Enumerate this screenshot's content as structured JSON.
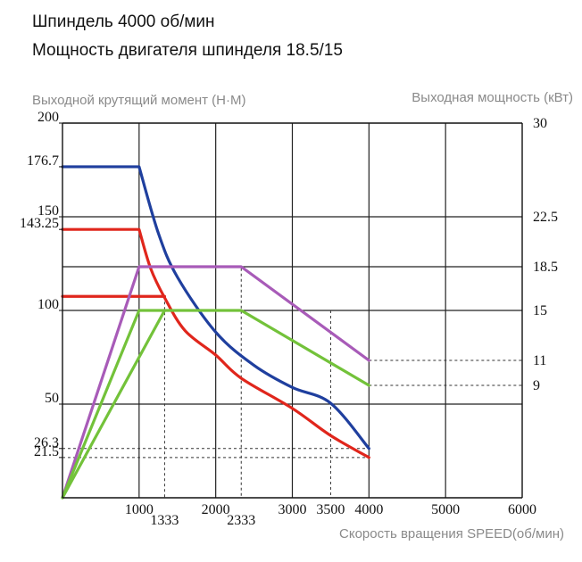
{
  "header": {
    "line1": "Шпиндель  4000  об/мин",
    "line2": "Мощность двигателя шпинделя  18.5/15"
  },
  "chart_data": {
    "type": "line",
    "ylabel_left": "Выходной крутящий момент  (Н·М)",
    "ylabel_right": "Выходная мощность (кВт)",
    "xlabel": "Скорость вращения  SPEED(об/мин)",
    "xlim": [
      0,
      6000
    ],
    "ylim_left": [
      0,
      200
    ],
    "ylim_right": [
      0,
      30
    ],
    "grid": true,
    "x_ticks": [
      {
        "value": 1000,
        "label": "1000",
        "row": 0
      },
      {
        "value": 1333,
        "label": "1333",
        "row": 1
      },
      {
        "value": 2000,
        "label": "2000",
        "row": 0
      },
      {
        "value": 2333,
        "label": "2333",
        "row": 1
      },
      {
        "value": 3000,
        "label": "3000",
        "row": 0
      },
      {
        "value": 3500,
        "label": "3500",
        "row": 0
      },
      {
        "value": 4000,
        "label": "4000",
        "row": 0
      },
      {
        "value": 5000,
        "label": "5000",
        "row": 0
      },
      {
        "value": 6000,
        "label": "6000",
        "row": 0
      }
    ],
    "y_left_ticks": [
      {
        "value": 200,
        "label": "200"
      },
      {
        "value": 176.7,
        "label": "176.7"
      },
      {
        "value": 150,
        "label": "150"
      },
      {
        "value": 143.25,
        "label": "143.25"
      },
      {
        "value": 100,
        "label": "100"
      },
      {
        "value": 50,
        "label": "50"
      },
      {
        "value": 26.3,
        "label": "26.3"
      },
      {
        "value": 21.5,
        "label": "21.5"
      }
    ],
    "y_right_ticks": [
      {
        "value": 30,
        "label": "30"
      },
      {
        "value": 22.5,
        "label": "22.5"
      },
      {
        "value": 18.5,
        "label": "18.5"
      },
      {
        "value": 15,
        "label": "15"
      },
      {
        "value": 11,
        "label": "11"
      },
      {
        "value": 9,
        "label": "9"
      }
    ],
    "series": [
      {
        "color": "#1f3f9e",
        "axis": "left",
        "x": [
          0,
          1000,
          1250,
          1500,
          2000,
          2500,
          3000,
          3500,
          4000
        ],
        "y": [
          176.7,
          176.7,
          141.4,
          117.8,
          88.4,
          70.7,
          58.9,
          50.5,
          26.3
        ]
      },
      {
        "color": "#e0261c",
        "axis": "left",
        "x": [
          0,
          1000,
          1150,
          1333,
          1600,
          2000,
          2333,
          3000,
          3500,
          4000
        ],
        "y": [
          143.25,
          143.25,
          122.5,
          106.8,
          89.2,
          76.2,
          63.8,
          47.7,
          33.2,
          21.5
        ]
      },
      {
        "color": "#e0261c",
        "axis": "left",
        "x": [
          0,
          1333
        ],
        "y": [
          107.5,
          107.5
        ]
      },
      {
        "color": "#a85bb8",
        "axis": "right",
        "x": [
          0,
          1000,
          2333,
          4000
        ],
        "y": [
          0,
          18.5,
          18.5,
          11
        ]
      },
      {
        "color": "#73c23a",
        "axis": "right",
        "x": [
          0,
          1000,
          2333,
          4000
        ],
        "y": [
          0,
          15,
          15,
          9
        ]
      },
      {
        "color": "#73c23a",
        "axis": "right",
        "x": [
          0,
          1333
        ],
        "y": [
          0,
          15
        ]
      }
    ],
    "guides": [
      {
        "kind": "vline",
        "x": 1333,
        "y": 107.5,
        "axis": "left"
      },
      {
        "kind": "vline",
        "x": 2333,
        "y": 122.5,
        "axis": "left"
      },
      {
        "kind": "vline",
        "x": 3500,
        "y": 100,
        "axis": "left"
      },
      {
        "kind": "hline",
        "x": 0,
        "y": 26.3,
        "axis": "left"
      },
      {
        "kind": "hline",
        "x": 0,
        "y": 21.5,
        "axis": "left"
      },
      {
        "kind": "hline",
        "x": 4000,
        "y": 11,
        "axis": "right"
      },
      {
        "kind": "hline",
        "x": 4000,
        "y": 9,
        "axis": "right"
      }
    ]
  }
}
